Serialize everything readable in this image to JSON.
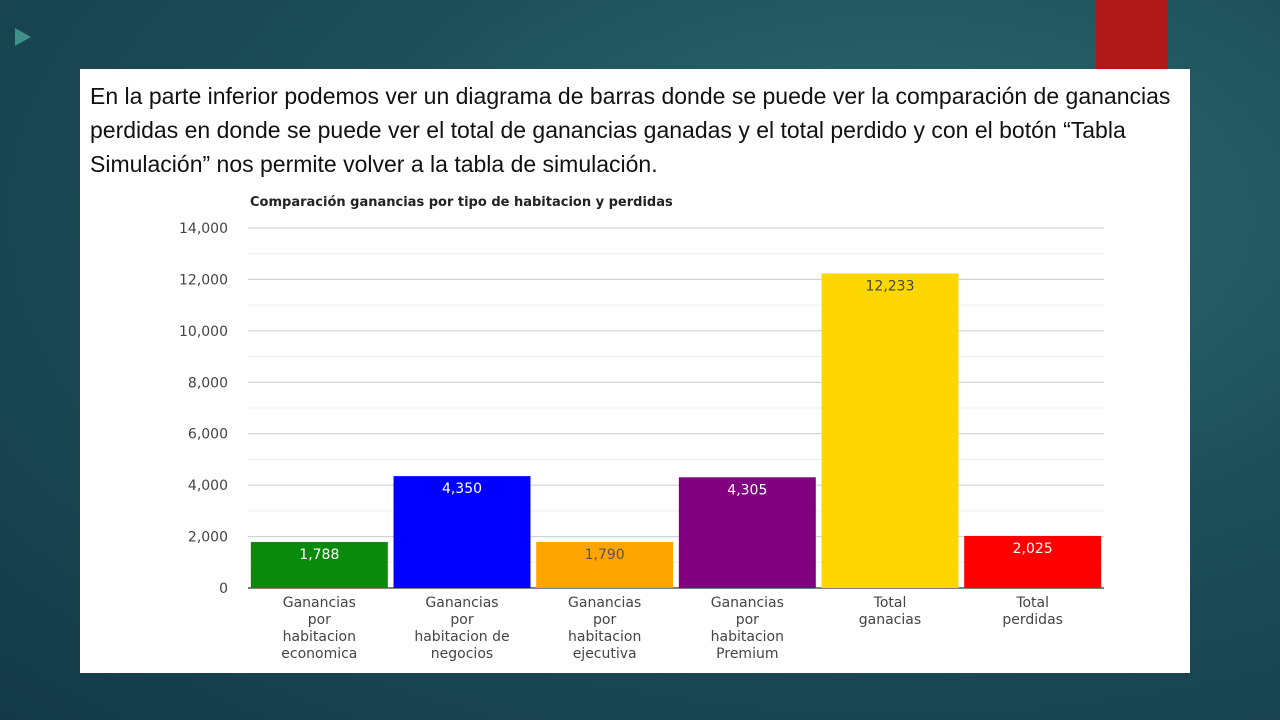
{
  "slide": {
    "paragraph": "En la parte inferior podemos ver un diagrama de barras donde se puede ver la comparación de ganancias perdidas en donde se puede ver el total de ganancias ganadas y el total perdido y con el botón “Tabla Simulación” nos permite volver a la tabla de simulación.",
    "accent_color": "#b01818"
  },
  "chart_data": {
    "type": "bar",
    "title": "Comparación ganancias por tipo de habitacion y perdidas",
    "xlabel": "",
    "ylabel": "",
    "ylim": [
      0,
      14000
    ],
    "yticks": [
      0,
      2000,
      4000,
      6000,
      8000,
      10000,
      12000,
      14000
    ],
    "ytick_labels": [
      "0",
      "2,000",
      "4,000",
      "6,000",
      "8,000",
      "10,000",
      "12,000",
      "14,000"
    ],
    "grid": true,
    "categories": [
      [
        "Ganancias",
        "por",
        "habitacion",
        "economica"
      ],
      [
        "Ganancias",
        "por",
        "habitacion de",
        "negocios"
      ],
      [
        "Ganancias",
        "por",
        "habitacion",
        "ejecutiva"
      ],
      [
        "Ganancias",
        "por",
        "habitacion",
        "Premium"
      ],
      [
        "Total",
        "ganacias"
      ],
      [
        "Total",
        "perdidas"
      ]
    ],
    "values": [
      1788,
      4350,
      1790,
      4305,
      12233,
      2025
    ],
    "value_labels": [
      "1,788",
      "4,350",
      "1,790",
      "4,305",
      "12,233",
      "2,025"
    ],
    "colors": [
      "#0a8a0a",
      "#0000ff",
      "#ffa500",
      "#800080",
      "#ffd700",
      "#ff0000"
    ],
    "label_colors": [
      "#ffffff",
      "#ffffff",
      "#555555",
      "#ffffff",
      "#444444",
      "#ffffff"
    ]
  }
}
